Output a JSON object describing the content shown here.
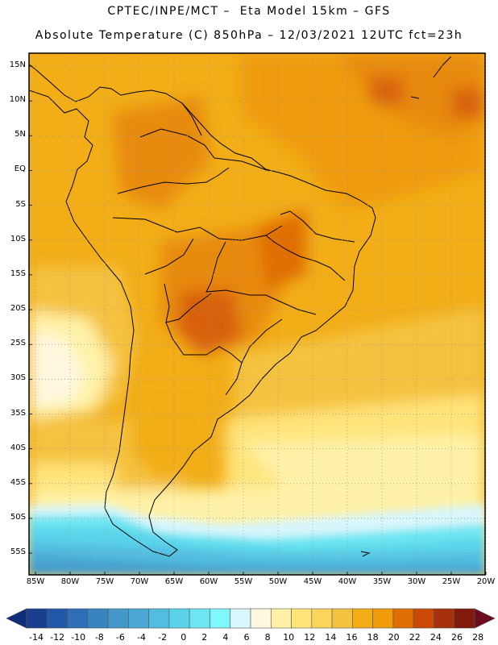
{
  "header": {
    "line1": "CPTEC/INPE/MCT –  Eta Model 15km – GFS",
    "line2": "Absolute Temperature (C) 850hPa – 12/03/2021 12UTC fct=23h"
  },
  "map": {
    "lat_labels": [
      "15N",
      "10N",
      "5N",
      "EQ",
      "5S",
      "10S",
      "15S",
      "20S",
      "25S",
      "30S",
      "35S",
      "40S",
      "45S",
      "50S",
      "55S"
    ],
    "lon_labels": [
      "85W",
      "80W",
      "75W",
      "70W",
      "65W",
      "60W",
      "55W",
      "50W",
      "45W",
      "40W",
      "35W",
      "30W",
      "25W",
      "20W"
    ],
    "lat_values": [
      15,
      10,
      5,
      0,
      -5,
      -10,
      -15,
      -20,
      -25,
      -30,
      -35,
      -40,
      -45,
      -50,
      -55
    ],
    "lon_values": [
      -85,
      -80,
      -75,
      -70,
      -65,
      -60,
      -55,
      -50,
      -45,
      -40,
      -35,
      -30,
      -25,
      -20
    ]
  },
  "colorbar": {
    "labels": [
      "-14",
      "-12",
      "-10",
      "-8",
      "-6",
      "-4",
      "-2",
      "0",
      "2",
      "4",
      "6",
      "8",
      "10",
      "12",
      "14",
      "16",
      "18",
      "20",
      "22",
      "24",
      "26",
      "28"
    ],
    "colors": [
      "#1a3f8f",
      "#2358a8",
      "#2e6fb5",
      "#3884bf",
      "#4498c8",
      "#4aa8d4",
      "#52bde0",
      "#5ad3ea",
      "#6ee6f2",
      "#7ff7fb",
      "#d8f6fc",
      "#fff8e0",
      "#fff2a8",
      "#ffe47a",
      "#fbd45a",
      "#f5c240",
      "#f2ad17",
      "#ef9b0a",
      "#e06e04",
      "#c84a04",
      "#a8300a",
      "#7f1a0d"
    ],
    "under_color": "#0e2d7a",
    "over_color": "#6a0c1e"
  }
}
